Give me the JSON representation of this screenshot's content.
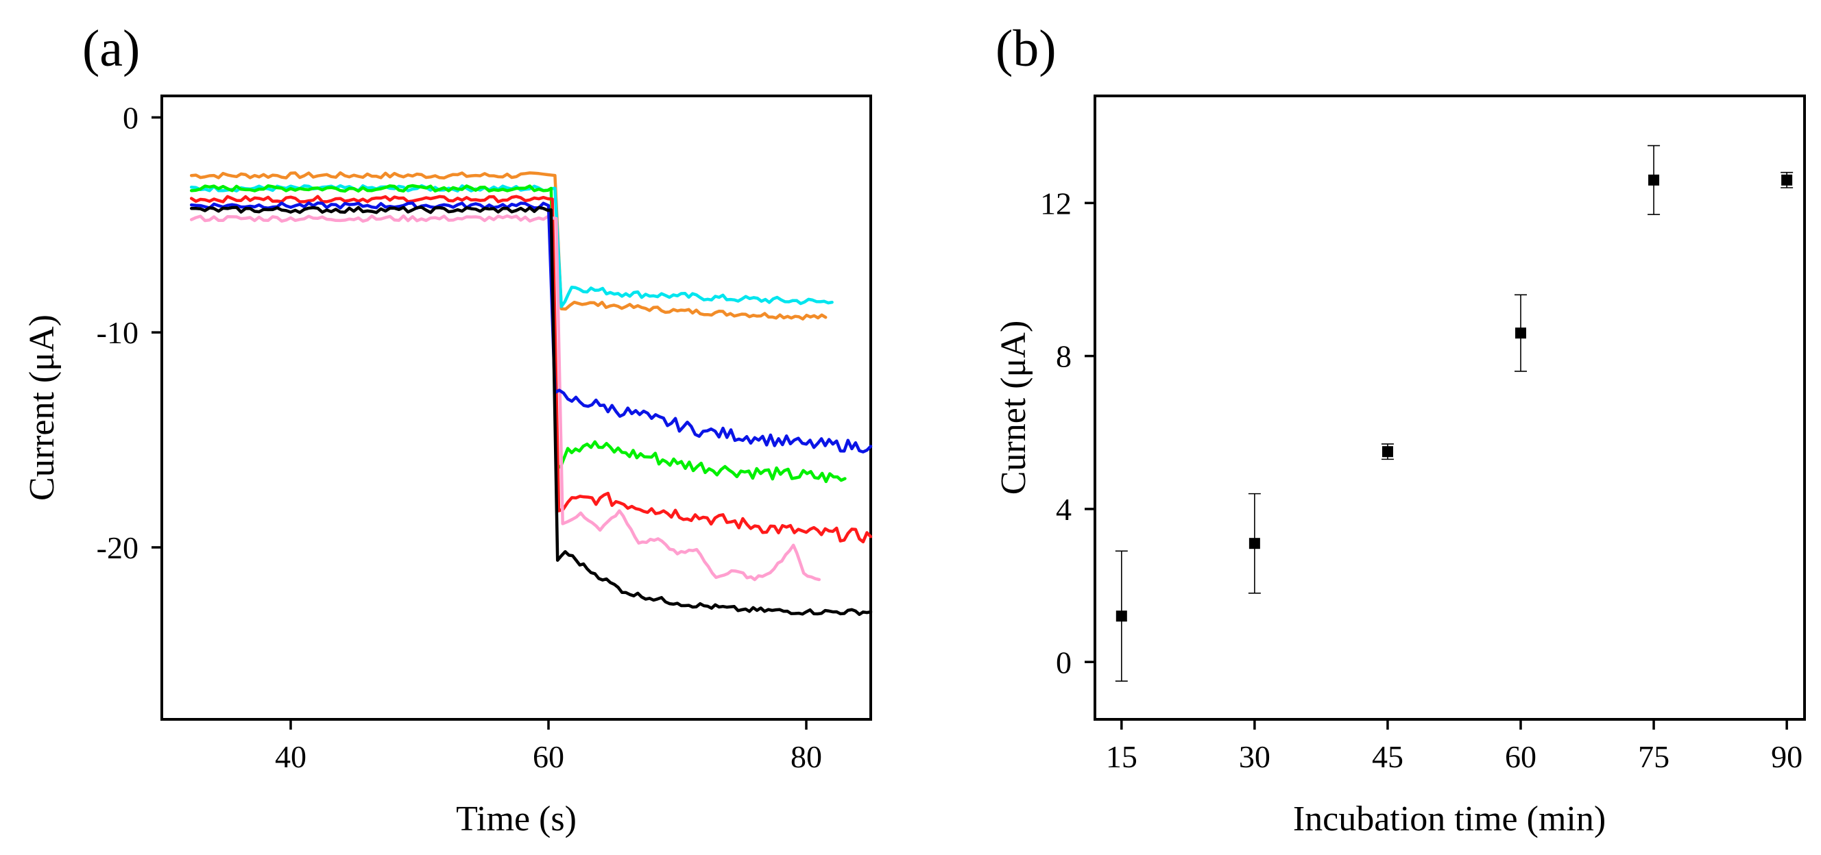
{
  "chart_data": [
    {
      "panel_label": "(a)",
      "type": "line",
      "title": "",
      "xlabel": "Time (s)",
      "ylabel": "Current (μA)",
      "xlim": [
        30,
        85
      ],
      "ylim": [
        -28,
        1
      ],
      "x_ticks": [
        40,
        60,
        80
      ],
      "x_tick_labels": [
        "40",
        "60",
        "80"
      ],
      "y_ticks": [
        0,
        -10,
        -20
      ],
      "y_tick_labels": [
        "0",
        "-10",
        "-20"
      ],
      "grid": false,
      "legend": "none",
      "series": [
        {
          "name": "orange",
          "color": "#f28c28",
          "pre_level": -2.7,
          "drop_time": 60.5,
          "dip_value": -8.9,
          "points": [
            [
              62,
              -8.6
            ],
            [
              66,
              -8.8
            ],
            [
              70,
              -9.0
            ],
            [
              75,
              -9.15
            ],
            [
              81.5,
              -9.3
            ]
          ],
          "noise": 0.12
        },
        {
          "name": "cyan",
          "color": "#00e5ee",
          "pre_level": -3.3,
          "drop_time": 60.5,
          "dip_value": -8.8,
          "points": [
            [
              61.8,
              -7.9
            ],
            [
              66,
              -8.2
            ],
            [
              70,
              -8.3
            ],
            [
              75,
              -8.45
            ],
            [
              82,
              -8.6
            ]
          ],
          "noise": 0.15
        },
        {
          "name": "green",
          "color": "#00f000",
          "pre_level": -3.3,
          "drop_time": 60.2,
          "dip_value": -16.3,
          "points": [
            [
              61.5,
              -15.4
            ],
            [
              63,
              -15.2
            ],
            [
              66,
              -15.6
            ],
            [
              68,
              -15.8
            ],
            [
              70,
              -16.1
            ],
            [
              74,
              -16.4
            ],
            [
              78,
              -16.6
            ],
            [
              83,
              -16.8
            ]
          ],
          "noise": 0.3
        },
        {
          "name": "red",
          "color": "#ff1a1a",
          "pre_level": -3.8,
          "drop_time": 60.3,
          "dip_value": -18.3,
          "points": [
            [
              61.5,
              -17.9
            ],
            [
              64,
              -17.7
            ],
            [
              68,
              -18.2
            ],
            [
              72,
              -18.6
            ],
            [
              76,
              -19.0
            ],
            [
              80,
              -19.3
            ],
            [
              85,
              -19.5
            ]
          ],
          "noise": 0.3
        },
        {
          "name": "pink",
          "color": "#ff9fcf",
          "pre_level": -4.7,
          "drop_time": 60.6,
          "dip_value": -18.9,
          "points": [
            [
              61.5,
              -18.8
            ],
            [
              62.5,
              -18.4
            ],
            [
              64,
              -19.2
            ],
            [
              65.5,
              -18.3
            ],
            [
              67,
              -19.8
            ],
            [
              68.5,
              -19.6
            ],
            [
              70,
              -20.3
            ],
            [
              71.5,
              -20.1
            ],
            [
              73,
              -21.4
            ],
            [
              74.5,
              -21.1
            ],
            [
              76,
              -21.5
            ],
            [
              77.5,
              -21.0
            ],
            [
              79,
              -19.9
            ],
            [
              79.8,
              -21.2
            ],
            [
              81,
              -21.5
            ]
          ],
          "noise": 0.08
        },
        {
          "name": "blue",
          "color": "#0a14e6",
          "pre_level": -4.1,
          "drop_time": 60.0,
          "dip_value": -12.8,
          "points": [
            [
              61.5,
              -13.1
            ],
            [
              64,
              -13.4
            ],
            [
              68,
              -14.0
            ],
            [
              72,
              -14.6
            ],
            [
              76,
              -14.9
            ],
            [
              80,
              -15.2
            ],
            [
              85,
              -15.3
            ]
          ],
          "noise": 0.28
        },
        {
          "name": "black",
          "color": "#000000",
          "pre_level": -4.3,
          "drop_time": 60.2,
          "dip_value": -20.6,
          "points": [
            [
              61.3,
              -20.2
            ],
            [
              63,
              -21.0
            ],
            [
              66,
              -22.1
            ],
            [
              70,
              -22.6
            ],
            [
              75,
              -22.9
            ],
            [
              80,
              -23.0
            ],
            [
              85,
              -23.0
            ]
          ],
          "noise": 0.12
        }
      ]
    },
    {
      "panel_label": "(b)",
      "type": "scatter",
      "title": "",
      "xlabel": "Incubation time (min)",
      "ylabel": "Curnet (μA)",
      "xlim": [
        12,
        92
      ],
      "ylim": [
        -1.5,
        14.8
      ],
      "x_ticks": [
        15,
        30,
        45,
        60,
        75,
        90
      ],
      "x_tick_labels": [
        "15",
        "30",
        "45",
        "60",
        "75",
        "90"
      ],
      "y_ticks": [
        0,
        4,
        8,
        12
      ],
      "y_tick_labels": [
        "0",
        "4",
        "8",
        "12"
      ],
      "grid": false,
      "legend": "none",
      "x": [
        15,
        30,
        45,
        60,
        75,
        90
      ],
      "y": [
        1.2,
        3.1,
        5.5,
        8.6,
        12.6,
        12.6
      ],
      "error": [
        1.7,
        1.3,
        0.2,
        1.0,
        0.9,
        0.2
      ]
    }
  ]
}
